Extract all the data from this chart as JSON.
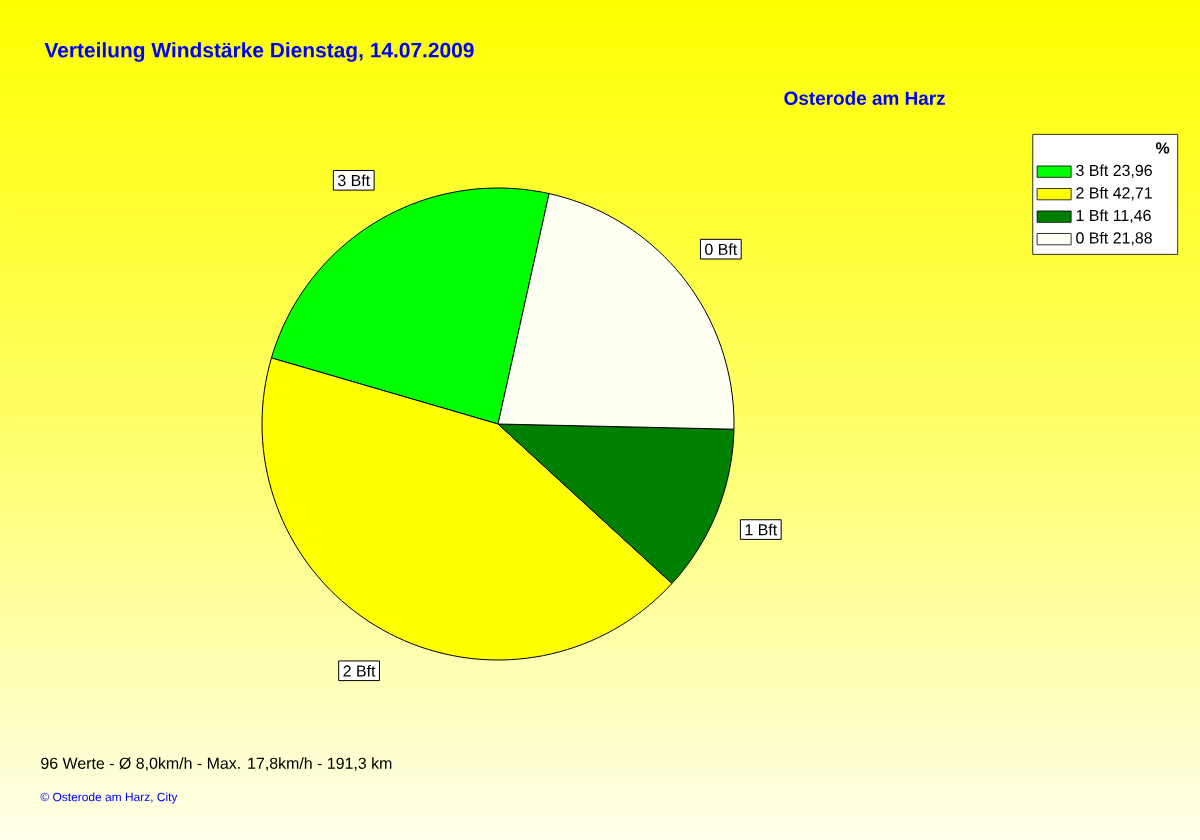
{
  "chart_data": {
    "type": "pie",
    "title": "Verteilung Windstärke  Dienstag, 14.07.2009",
    "subtitle": "Osterode am Harz",
    "categories": [
      "3 Bft",
      "2 Bft",
      "1 Bft",
      "0 Bft"
    ],
    "values": [
      23.96,
      42.71,
      11.46,
      21.88
    ],
    "value_labels": [
      "23,96",
      "42,71",
      "11,46",
      "21,88"
    ],
    "colors": [
      "#00ff00",
      "#ffff00",
      "#008000",
      "#fffff4"
    ],
    "legend": "top right",
    "legend_title": "%",
    "annotations": [
      "96 Werte   -   Ø 8,0km/h  -  Max. 17,8km/h   -   191,3 km",
      "© Osterode am Harz, City"
    ]
  }
}
